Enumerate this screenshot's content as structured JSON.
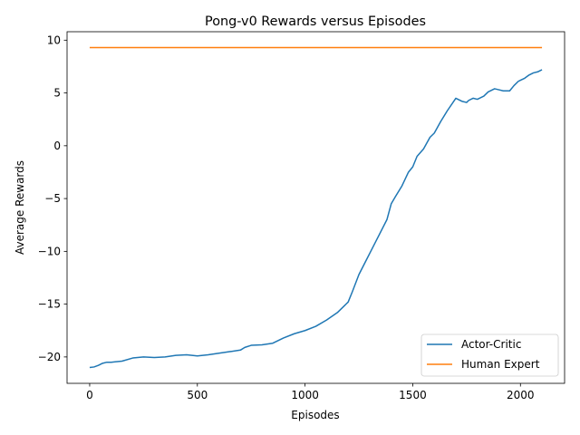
{
  "chart_data": {
    "type": "line",
    "title": "Pong-v0 Rewards versus Episodes",
    "xlabel": "Episodes",
    "ylabel": "Average Rewards",
    "xlim": [
      -105,
      2205
    ],
    "ylim": [
      -22.5,
      10.8
    ],
    "xticks": [
      0,
      500,
      1000,
      1500,
      2000
    ],
    "yticks": [
      -20,
      -15,
      -10,
      -5,
      0,
      5,
      10
    ],
    "grid": false,
    "legend_position": "lower right",
    "series": [
      {
        "name": "Actor-Critic",
        "color": "#1f77b4",
        "x": [
          0,
          20,
          40,
          60,
          80,
          100,
          150,
          200,
          250,
          300,
          350,
          400,
          450,
          500,
          550,
          600,
          650,
          700,
          720,
          750,
          800,
          850,
          900,
          950,
          1000,
          1050,
          1100,
          1150,
          1200,
          1220,
          1250,
          1280,
          1300,
          1330,
          1360,
          1380,
          1400,
          1420,
          1450,
          1480,
          1500,
          1520,
          1550,
          1580,
          1600,
          1630,
          1660,
          1700,
          1730,
          1750,
          1760,
          1780,
          1800,
          1830,
          1850,
          1880,
          1900,
          1920,
          1950,
          1970,
          1990,
          2000,
          2020,
          2040,
          2060,
          2080,
          2100
        ],
        "y": [
          -21.0,
          -20.95,
          -20.8,
          -20.6,
          -20.5,
          -20.5,
          -20.4,
          -20.1,
          -20.0,
          -20.05,
          -20.0,
          -19.85,
          -19.8,
          -19.9,
          -19.8,
          -19.65,
          -19.5,
          -19.35,
          -19.1,
          -18.9,
          -18.85,
          -18.7,
          -18.2,
          -17.8,
          -17.5,
          -17.1,
          -16.5,
          -15.8,
          -14.8,
          -13.8,
          -12.2,
          -11.0,
          -10.2,
          -9.0,
          -7.8,
          -7.0,
          -5.5,
          -4.8,
          -3.8,
          -2.5,
          -2.0,
          -1.0,
          -0.3,
          0.8,
          1.2,
          2.3,
          3.3,
          4.5,
          4.2,
          4.1,
          4.3,
          4.5,
          4.4,
          4.7,
          5.1,
          5.4,
          5.3,
          5.2,
          5.2,
          5.7,
          6.1,
          6.2,
          6.4,
          6.7,
          6.9,
          7.0,
          7.2
        ]
      },
      {
        "name": "Human Expert",
        "color": "#ff7f0e",
        "x": [
          0,
          2100
        ],
        "y": [
          9.3,
          9.3
        ]
      }
    ]
  }
}
